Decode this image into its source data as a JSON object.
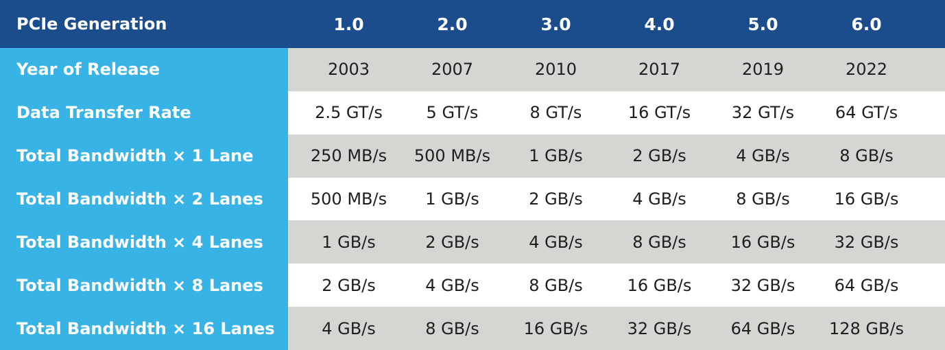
{
  "table": {
    "header": [
      "PCIe Generation",
      "1.0",
      "2.0",
      "3.0",
      "4.0",
      "5.0",
      "6.0"
    ],
    "rows": [
      [
        "Year of Release",
        "2003",
        "2007",
        "2010",
        "2017",
        "2019",
        "2022"
      ],
      [
        "Data Transfer Rate",
        "2.5 GT/s",
        "5 GT/s",
        "8 GT/s",
        "16 GT/s",
        "32 GT/s",
        "64 GT/s"
      ],
      [
        "Total Bandwidth × 1 Lane",
        "250 MB/s",
        "500 MB/s",
        "1 GB/s",
        "2 GB/s",
        "4 GB/s",
        "8 GB/s"
      ],
      [
        "Total Bandwidth × 2 Lanes",
        "500 MB/s",
        "1 GB/s",
        "2 GB/s",
        "4 GB/s",
        "8 GB/s",
        "16 GB/s"
      ],
      [
        "Total Bandwidth × 4 Lanes",
        "1 GB/s",
        "2 GB/s",
        "4 GB/s",
        "8 GB/s",
        "16 GB/s",
        "32 GB/s"
      ],
      [
        "Total Bandwidth × 8 Lanes",
        "2 GB/s",
        "4 GB/s",
        "8 GB/s",
        "16 GB/s",
        "32 GB/s",
        "64 GB/s"
      ],
      [
        "Total Bandwidth × 16 Lanes",
        "4 GB/s",
        "8 GB/s",
        "16 GB/s",
        "32 GB/s",
        "64 GB/s",
        "128 GB/s"
      ]
    ]
  }
}
